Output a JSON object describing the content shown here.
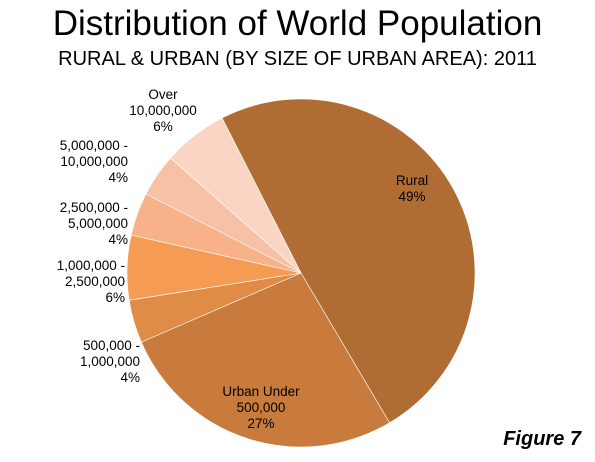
{
  "chart_data": {
    "type": "pie",
    "title": "Distribution of World Population",
    "subtitle": "RURAL & URBAN (BY SIZE OF URBAN AREA): 2011",
    "slices": [
      {
        "label": [
          "Rural",
          "49%"
        ],
        "value": 49,
        "color": "#B06D33"
      },
      {
        "label": [
          "Urban Under",
          "500,000",
          "27%"
        ],
        "value": 27,
        "color": "#C87B3C"
      },
      {
        "label": [
          "500,000 -",
          "1,000,000",
          "4%"
        ],
        "value": 4,
        "color": "#E08B46"
      },
      {
        "label": [
          "1,000,000 -",
          "2,500,000",
          "6%"
        ],
        "value": 6,
        "color": "#F59B53"
      },
      {
        "label": [
          "2,500,000 -",
          "5,000,000",
          "4%"
        ],
        "value": 4,
        "color": "#F7B28A"
      },
      {
        "label": [
          "5,000,000 -",
          "10,000,000",
          "4%"
        ],
        "value": 4,
        "color": "#F8C1A5"
      },
      {
        "label": [
          "Over",
          "10,000,000",
          "6%"
        ],
        "value": 6,
        "color": "#FAD5C4"
      }
    ]
  },
  "footer": {
    "figure_label": "Figure 7"
  }
}
